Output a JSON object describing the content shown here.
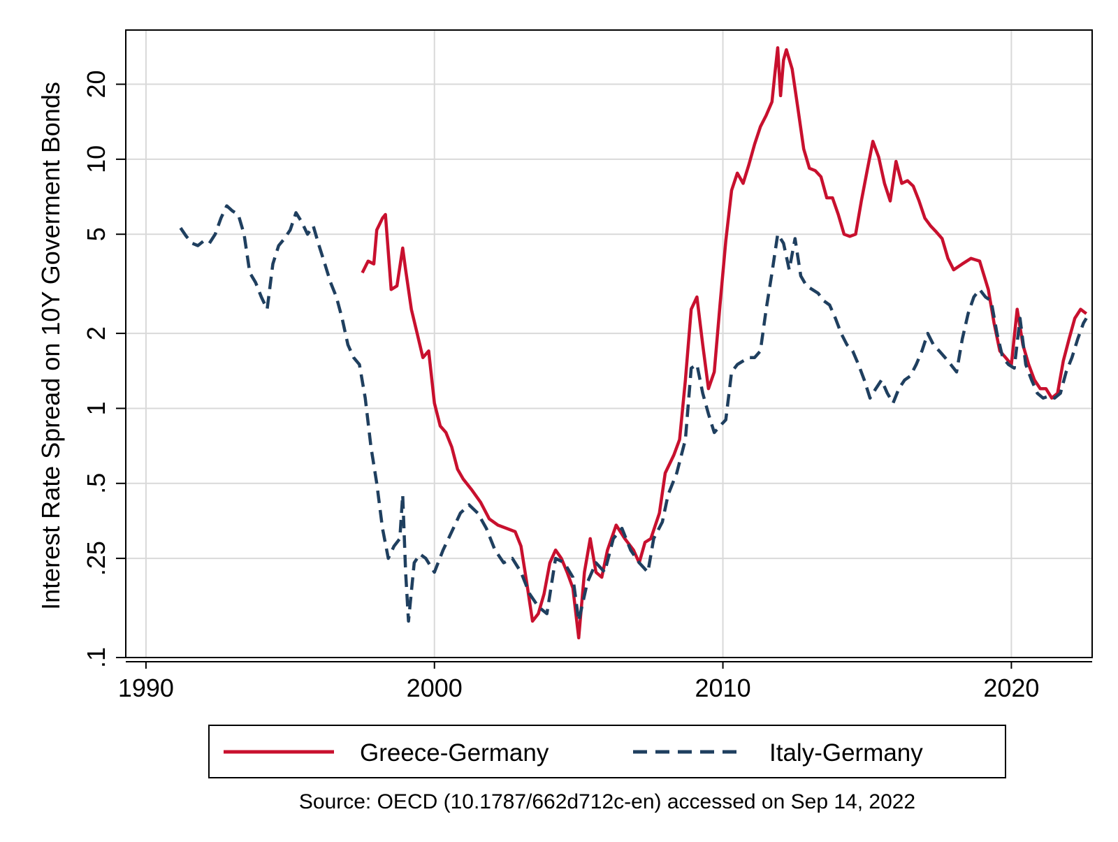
{
  "chart_data": {
    "type": "line",
    "title": "",
    "xlabel": "",
    "ylabel": "Interest Rate Spread on 10Y Goverment Bonds",
    "yscale": "log",
    "xlim": [
      1989.3,
      2022.8
    ],
    "ylim": [
      0.1,
      33
    ],
    "x_ticks": [
      1990,
      2000,
      2010,
      2020
    ],
    "x_tick_labels": [
      "1990",
      "2000",
      "2010",
      "2020"
    ],
    "y_ticks": [
      0.1,
      0.25,
      0.5,
      1,
      2,
      5,
      10,
      20
    ],
    "y_tick_labels": [
      ".1",
      ".25",
      ".5",
      "1",
      "2",
      "5",
      "10",
      "20"
    ],
    "grid": true,
    "legend_position": "bottom",
    "source_note": "Source: OECD (10.1787/662d712c-en) accessed on Sep 14, 2022",
    "series": [
      {
        "name": "Greece-Germany",
        "color": "#c8102e",
        "dash": "solid",
        "points": [
          [
            1997.5,
            3.5
          ],
          [
            1997.7,
            3.9
          ],
          [
            1997.9,
            3.8
          ],
          [
            1998.0,
            5.2
          ],
          [
            1998.2,
            5.8
          ],
          [
            1998.3,
            6.0
          ],
          [
            1998.5,
            3.0
          ],
          [
            1998.7,
            3.1
          ],
          [
            1998.9,
            4.4
          ],
          [
            1999.0,
            3.6
          ],
          [
            1999.2,
            2.5
          ],
          [
            1999.4,
            2.0
          ],
          [
            1999.6,
            1.6
          ],
          [
            1999.8,
            1.7
          ],
          [
            2000.0,
            1.05
          ],
          [
            2000.2,
            0.85
          ],
          [
            2000.4,
            0.8
          ],
          [
            2000.6,
            0.7
          ],
          [
            2000.8,
            0.57
          ],
          [
            2001.0,
            0.52
          ],
          [
            2001.3,
            0.47
          ],
          [
            2001.6,
            0.42
          ],
          [
            2001.9,
            0.36
          ],
          [
            2002.2,
            0.34
          ],
          [
            2002.5,
            0.33
          ],
          [
            2002.8,
            0.32
          ],
          [
            2003.0,
            0.28
          ],
          [
            2003.2,
            0.2
          ],
          [
            2003.4,
            0.14
          ],
          [
            2003.6,
            0.15
          ],
          [
            2003.8,
            0.18
          ],
          [
            2004.0,
            0.24
          ],
          [
            2004.2,
            0.27
          ],
          [
            2004.4,
            0.25
          ],
          [
            2004.6,
            0.22
          ],
          [
            2004.8,
            0.19
          ],
          [
            2005.0,
            0.12
          ],
          [
            2005.2,
            0.22
          ],
          [
            2005.4,
            0.3
          ],
          [
            2005.6,
            0.22
          ],
          [
            2005.8,
            0.21
          ],
          [
            2006.0,
            0.27
          ],
          [
            2006.3,
            0.34
          ],
          [
            2006.6,
            0.3
          ],
          [
            2006.9,
            0.27
          ],
          [
            2007.1,
            0.24
          ],
          [
            2007.3,
            0.29
          ],
          [
            2007.5,
            0.3
          ],
          [
            2007.8,
            0.38
          ],
          [
            2008.0,
            0.55
          ],
          [
            2008.3,
            0.65
          ],
          [
            2008.5,
            0.75
          ],
          [
            2008.7,
            1.3
          ],
          [
            2008.9,
            2.5
          ],
          [
            2009.1,
            2.8
          ],
          [
            2009.3,
            1.8
          ],
          [
            2009.5,
            1.2
          ],
          [
            2009.7,
            1.4
          ],
          [
            2009.9,
            2.6
          ],
          [
            2010.1,
            4.7
          ],
          [
            2010.3,
            7.5
          ],
          [
            2010.5,
            8.8
          ],
          [
            2010.7,
            8.0
          ],
          [
            2010.9,
            9.5
          ],
          [
            2011.1,
            11.5
          ],
          [
            2011.3,
            13.5
          ],
          [
            2011.5,
            15.0
          ],
          [
            2011.7,
            17.0
          ],
          [
            2011.8,
            22.0
          ],
          [
            2011.9,
            28.0
          ],
          [
            2012.0,
            18.0
          ],
          [
            2012.1,
            25.0
          ],
          [
            2012.2,
            27.5
          ],
          [
            2012.4,
            23.0
          ],
          [
            2012.6,
            16.0
          ],
          [
            2012.8,
            11.0
          ],
          [
            2013.0,
            9.2
          ],
          [
            2013.2,
            9.0
          ],
          [
            2013.4,
            8.5
          ],
          [
            2013.6,
            7.0
          ],
          [
            2013.8,
            7.0
          ],
          [
            2014.0,
            6.0
          ],
          [
            2014.2,
            5.0
          ],
          [
            2014.4,
            4.9
          ],
          [
            2014.6,
            5.0
          ],
          [
            2014.8,
            6.8
          ],
          [
            2015.0,
            9.0
          ],
          [
            2015.2,
            11.8
          ],
          [
            2015.4,
            10.2
          ],
          [
            2015.6,
            8.0
          ],
          [
            2015.8,
            6.8
          ],
          [
            2016.0,
            9.8
          ],
          [
            2016.2,
            8.0
          ],
          [
            2016.4,
            8.2
          ],
          [
            2016.6,
            7.8
          ],
          [
            2016.8,
            6.8
          ],
          [
            2017.0,
            5.8
          ],
          [
            2017.2,
            5.4
          ],
          [
            2017.4,
            5.1
          ],
          [
            2017.6,
            4.8
          ],
          [
            2017.8,
            4.0
          ],
          [
            2018.0,
            3.6
          ],
          [
            2018.3,
            3.8
          ],
          [
            2018.6,
            4.0
          ],
          [
            2018.9,
            3.9
          ],
          [
            2019.2,
            3.0
          ],
          [
            2019.4,
            2.2
          ],
          [
            2019.6,
            1.7
          ],
          [
            2019.8,
            1.6
          ],
          [
            2020.0,
            1.5
          ],
          [
            2020.2,
            2.5
          ],
          [
            2020.4,
            1.8
          ],
          [
            2020.6,
            1.5
          ],
          [
            2020.8,
            1.3
          ],
          [
            2021.0,
            1.2
          ],
          [
            2021.2,
            1.2
          ],
          [
            2021.4,
            1.1
          ],
          [
            2021.6,
            1.15
          ],
          [
            2021.8,
            1.55
          ],
          [
            2022.0,
            1.9
          ],
          [
            2022.2,
            2.3
          ],
          [
            2022.4,
            2.5
          ],
          [
            2022.6,
            2.4
          ]
        ]
      },
      {
        "name": "Italy-Germany",
        "color": "#1f3f5f",
        "dash": "dashed",
        "points": [
          [
            1991.2,
            5.3
          ],
          [
            1991.4,
            4.9
          ],
          [
            1991.6,
            4.6
          ],
          [
            1991.8,
            4.5
          ],
          [
            1992.0,
            4.7
          ],
          [
            1992.2,
            4.6
          ],
          [
            1992.4,
            5.0
          ],
          [
            1992.6,
            5.8
          ],
          [
            1992.8,
            6.5
          ],
          [
            1993.0,
            6.2
          ],
          [
            1993.2,
            6.0
          ],
          [
            1993.4,
            5.0
          ],
          [
            1993.6,
            3.5
          ],
          [
            1993.8,
            3.2
          ],
          [
            1994.0,
            2.8
          ],
          [
            1994.2,
            2.5
          ],
          [
            1994.4,
            3.8
          ],
          [
            1994.6,
            4.5
          ],
          [
            1994.8,
            4.8
          ],
          [
            1995.0,
            5.2
          ],
          [
            1995.2,
            6.1
          ],
          [
            1995.4,
            5.6
          ],
          [
            1995.6,
            5.0
          ],
          [
            1995.8,
            5.4
          ],
          [
            1996.0,
            4.5
          ],
          [
            1996.2,
            3.8
          ],
          [
            1996.4,
            3.2
          ],
          [
            1996.6,
            2.8
          ],
          [
            1996.8,
            2.3
          ],
          [
            1997.0,
            1.8
          ],
          [
            1997.2,
            1.6
          ],
          [
            1997.4,
            1.5
          ],
          [
            1997.6,
            1.1
          ],
          [
            1997.8,
            0.7
          ],
          [
            1998.0,
            0.5
          ],
          [
            1998.2,
            0.33
          ],
          [
            1998.4,
            0.25
          ],
          [
            1998.6,
            0.28
          ],
          [
            1998.8,
            0.3
          ],
          [
            1998.9,
            0.45
          ],
          [
            1999.0,
            0.22
          ],
          [
            1999.1,
            0.14
          ],
          [
            1999.3,
            0.24
          ],
          [
            1999.5,
            0.26
          ],
          [
            1999.7,
            0.25
          ],
          [
            2000.0,
            0.22
          ],
          [
            2000.3,
            0.27
          ],
          [
            2000.6,
            0.32
          ],
          [
            2000.9,
            0.38
          ],
          [
            2001.2,
            0.41
          ],
          [
            2001.5,
            0.38
          ],
          [
            2001.8,
            0.33
          ],
          [
            2002.1,
            0.27
          ],
          [
            2002.4,
            0.24
          ],
          [
            2002.7,
            0.25
          ],
          [
            2003.0,
            0.22
          ],
          [
            2003.3,
            0.18
          ],
          [
            2003.6,
            0.16
          ],
          [
            2003.9,
            0.15
          ],
          [
            2004.2,
            0.25
          ],
          [
            2004.5,
            0.24
          ],
          [
            2004.8,
            0.21
          ],
          [
            2005.0,
            0.14
          ],
          [
            2005.3,
            0.2
          ],
          [
            2005.6,
            0.24
          ],
          [
            2005.9,
            0.22
          ],
          [
            2006.2,
            0.3
          ],
          [
            2006.5,
            0.33
          ],
          [
            2006.8,
            0.27
          ],
          [
            2007.1,
            0.24
          ],
          [
            2007.4,
            0.22
          ],
          [
            2007.6,
            0.3
          ],
          [
            2007.9,
            0.35
          ],
          [
            2008.1,
            0.45
          ],
          [
            2008.4,
            0.55
          ],
          [
            2008.7,
            0.75
          ],
          [
            2008.9,
            1.45
          ],
          [
            2009.1,
            1.5
          ],
          [
            2009.3,
            1.15
          ],
          [
            2009.5,
            0.95
          ],
          [
            2009.7,
            0.8
          ],
          [
            2009.9,
            0.85
          ],
          [
            2010.1,
            0.9
          ],
          [
            2010.3,
            1.4
          ],
          [
            2010.5,
            1.5
          ],
          [
            2010.7,
            1.55
          ],
          [
            2010.9,
            1.6
          ],
          [
            2011.1,
            1.6
          ],
          [
            2011.3,
            1.7
          ],
          [
            2011.5,
            2.5
          ],
          [
            2011.7,
            3.5
          ],
          [
            2011.9,
            5.0
          ],
          [
            2012.1,
            4.6
          ],
          [
            2012.3,
            3.6
          ],
          [
            2012.5,
            4.8
          ],
          [
            2012.7,
            3.4
          ],
          [
            2012.9,
            3.1
          ],
          [
            2013.1,
            3.0
          ],
          [
            2013.3,
            2.9
          ],
          [
            2013.5,
            2.7
          ],
          [
            2013.7,
            2.6
          ],
          [
            2013.9,
            2.3
          ],
          [
            2014.1,
            2.0
          ],
          [
            2014.3,
            1.8
          ],
          [
            2014.5,
            1.7
          ],
          [
            2014.7,
            1.5
          ],
          [
            2014.9,
            1.3
          ],
          [
            2015.1,
            1.1
          ],
          [
            2015.3,
            1.2
          ],
          [
            2015.5,
            1.3
          ],
          [
            2015.7,
            1.15
          ],
          [
            2015.9,
            1.05
          ],
          [
            2016.1,
            1.2
          ],
          [
            2016.3,
            1.3
          ],
          [
            2016.5,
            1.35
          ],
          [
            2016.7,
            1.5
          ],
          [
            2016.9,
            1.7
          ],
          [
            2017.1,
            2.0
          ],
          [
            2017.3,
            1.8
          ],
          [
            2017.5,
            1.7
          ],
          [
            2017.7,
            1.6
          ],
          [
            2017.9,
            1.5
          ],
          [
            2018.1,
            1.4
          ],
          [
            2018.3,
            1.9
          ],
          [
            2018.5,
            2.4
          ],
          [
            2018.7,
            2.8
          ],
          [
            2018.9,
            3.0
          ],
          [
            2019.1,
            2.8
          ],
          [
            2019.3,
            2.7
          ],
          [
            2019.5,
            2.0
          ],
          [
            2019.7,
            1.6
          ],
          [
            2019.9,
            1.5
          ],
          [
            2020.1,
            1.45
          ],
          [
            2020.3,
            2.3
          ],
          [
            2020.5,
            1.5
          ],
          [
            2020.7,
            1.3
          ],
          [
            2020.9,
            1.15
          ],
          [
            2021.1,
            1.1
          ],
          [
            2021.3,
            1.12
          ],
          [
            2021.5,
            1.1
          ],
          [
            2021.7,
            1.15
          ],
          [
            2021.9,
            1.4
          ],
          [
            2022.1,
            1.6
          ],
          [
            2022.3,
            1.9
          ],
          [
            2022.5,
            2.2
          ],
          [
            2022.6,
            2.3
          ]
        ]
      }
    ]
  }
}
